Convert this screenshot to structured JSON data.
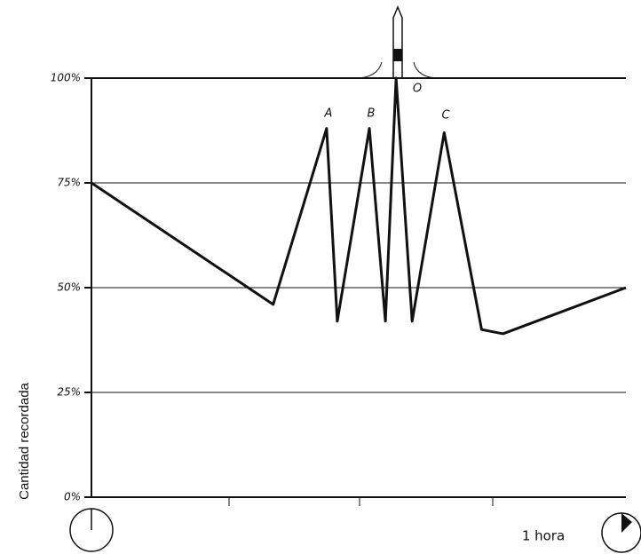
{
  "chart_data": {
    "type": "line",
    "ylabel": "Cantidad recordada",
    "xlabel": "1 hora",
    "annotations": [
      "A",
      "B",
      "O",
      "C"
    ],
    "x": [
      0,
      0.34,
      0.44,
      0.46,
      0.52,
      0.55,
      0.57,
      0.6,
      0.66,
      0.73,
      0.77,
      1
    ],
    "values": [
      75,
      46,
      88,
      42,
      88,
      42,
      100,
      42,
      87,
      40,
      39,
      50
    ],
    "color": "#111111",
    "xlim": [
      0,
      1
    ],
    "ylim": [
      0,
      100
    ],
    "yticks": [
      {
        "value": 0,
        "label": "0%"
      },
      {
        "value": 25,
        "label": "25%"
      },
      {
        "value": 50,
        "label": "50%"
      },
      {
        "value": 75,
        "label": "75%"
      },
      {
        "value": 100,
        "label": "100%"
      }
    ],
    "grid": true
  }
}
